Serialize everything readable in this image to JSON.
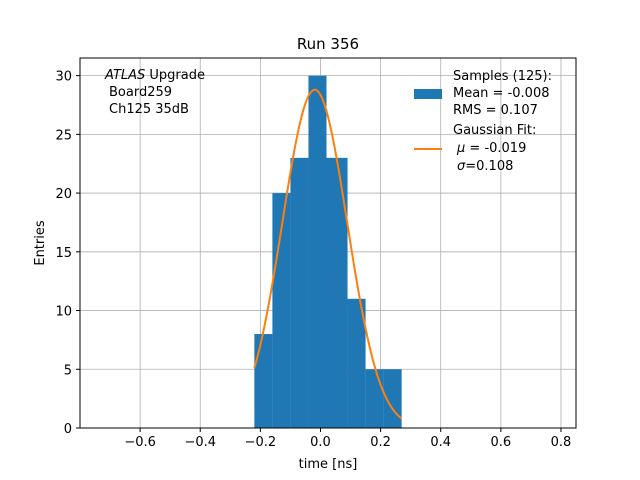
{
  "chart_data": {
    "type": "histogram",
    "title": "Run 356",
    "xlabel": "time [ns]",
    "ylabel": "Entries",
    "xlim": [
      -0.8,
      0.85
    ],
    "ylim": [
      0,
      31.5
    ],
    "grid": true,
    "xticks": [
      -0.6,
      -0.4,
      -0.2,
      0.0,
      0.2,
      0.4,
      0.6,
      0.8
    ],
    "xtick_labels": [
      "−0.6",
      "−0.4",
      "−0.2",
      "0.0",
      "0.2",
      "0.4",
      "0.6",
      "0.8"
    ],
    "yticks": [
      0,
      5,
      10,
      15,
      20,
      25,
      30
    ],
    "ytick_labels": [
      "0",
      "5",
      "10",
      "15",
      "20",
      "25",
      "30"
    ],
    "histogram": {
      "name": "Samples (125)",
      "color": "#1f77b4",
      "bin_edges": [
        -0.22,
        -0.16,
        -0.1,
        -0.04,
        0.02,
        0.09,
        0.15,
        0.21,
        0.27
      ],
      "counts": [
        8,
        20,
        23,
        30,
        23,
        11,
        5,
        5
      ]
    },
    "fit": {
      "name": "Gaussian Fit",
      "color": "#ff7f0e",
      "amplitude": 28.8,
      "mu": -0.019,
      "sigma": 0.108,
      "x_range": [
        -0.22,
        0.27
      ]
    },
    "annotation": {
      "atlas": "ATLAS",
      "upgrade": " Upgrade",
      "line2": "Board259",
      "line3": "Ch125 35dB"
    },
    "legend": {
      "position": "top-right",
      "hist_lines": [
        "Samples (125):",
        " Mean = -0.008",
        " RMS = 0.107"
      ],
      "fit_title": "Gaussian Fit:",
      "fit_mu_symbol": "μ",
      "fit_mu_value": " = -0.019",
      "fit_sigma_symbol": "σ",
      "fit_sigma_value": "=0.108"
    }
  }
}
